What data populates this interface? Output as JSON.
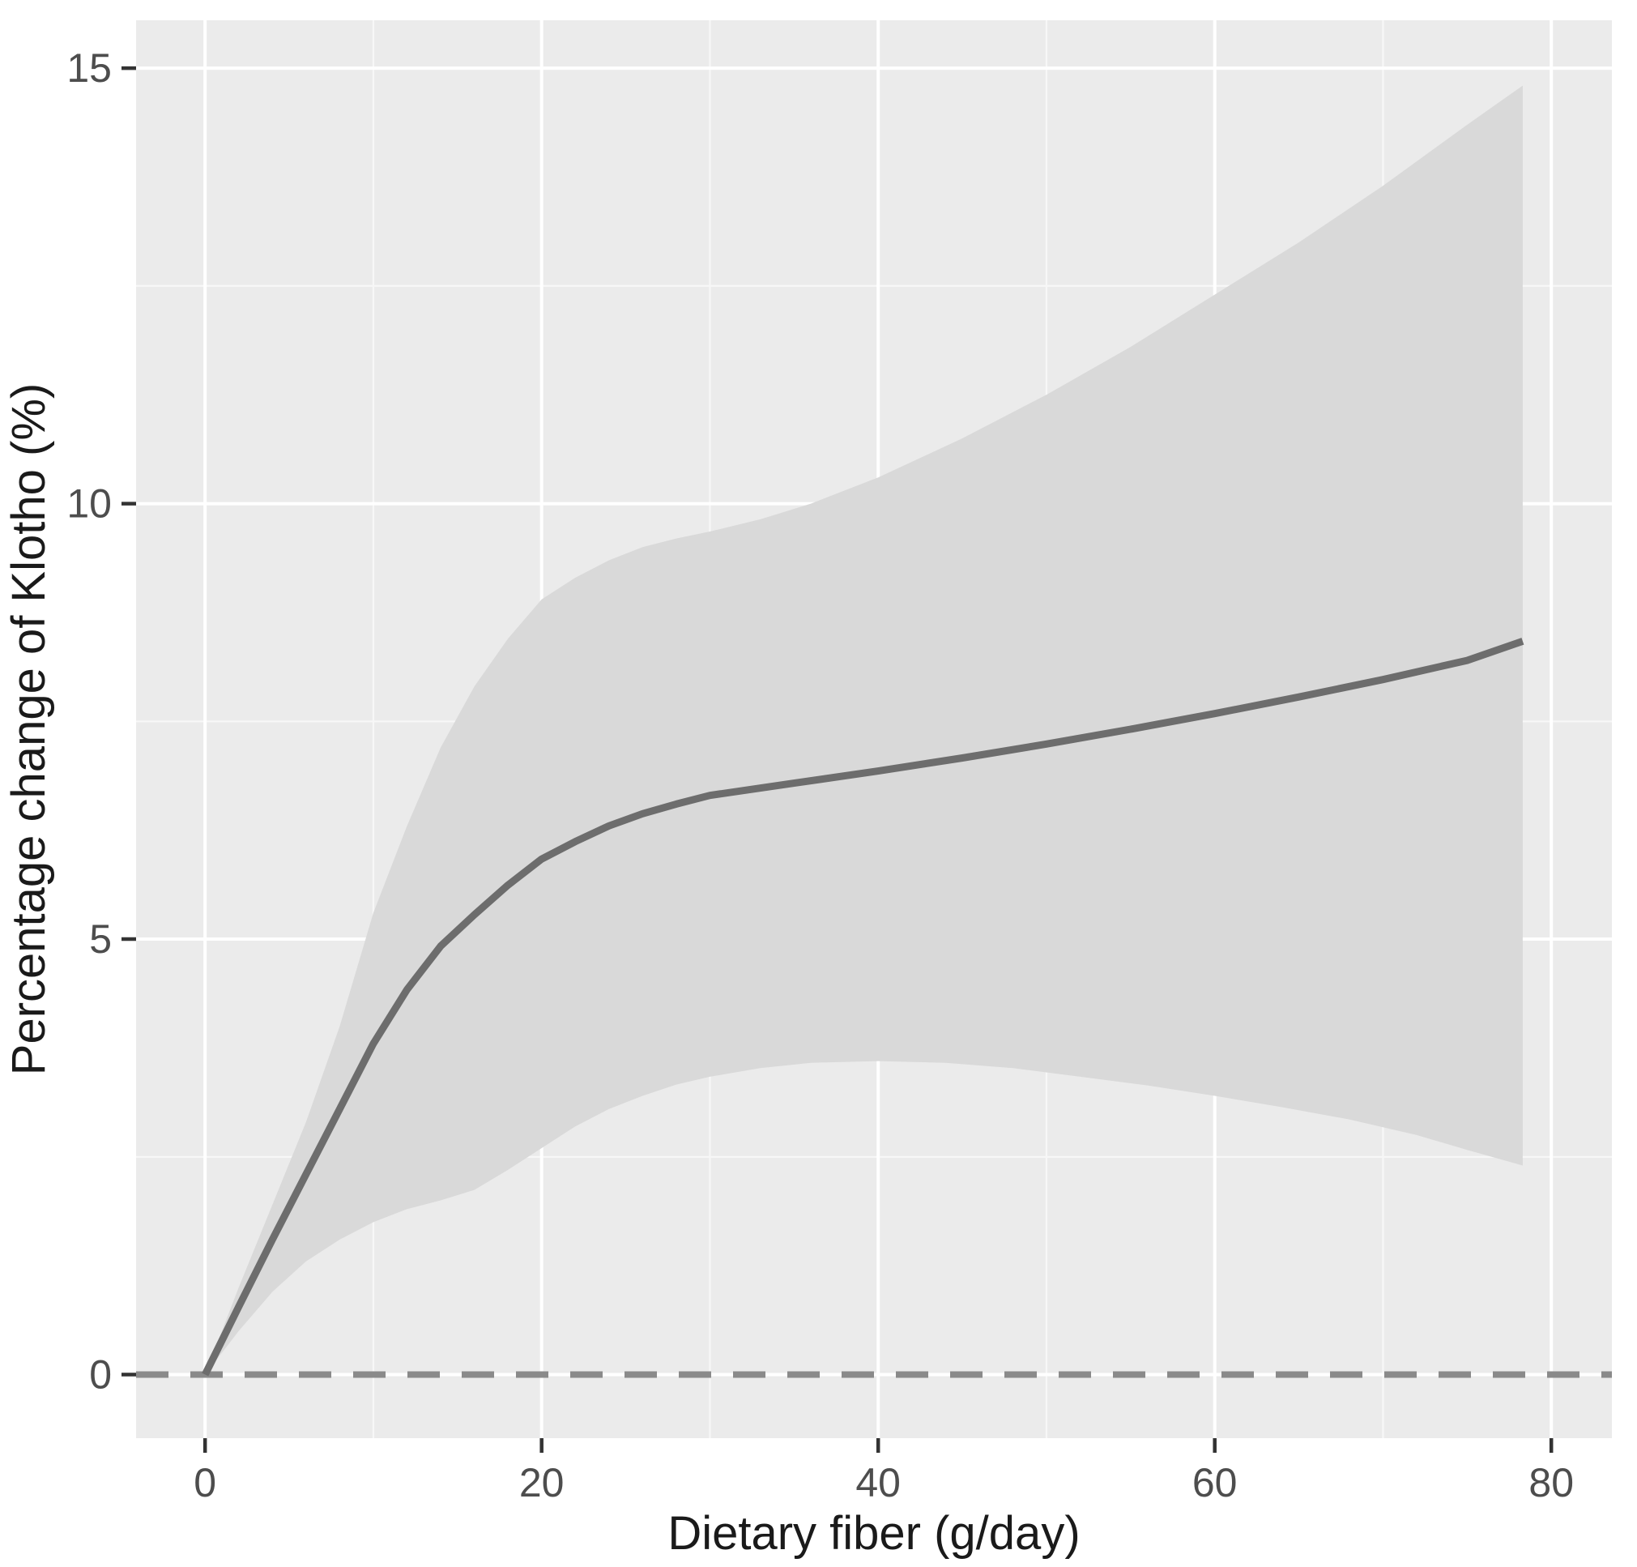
{
  "figure": {
    "kind": "ggplot-style dose-response plot",
    "background": "#ffffff"
  },
  "chart_data": {
    "type": "line",
    "title": "",
    "x": {
      "label": "Dietary fiber (g/day)",
      "ticks": [
        0,
        20,
        40,
        60,
        80
      ],
      "minor_ticks": [
        10,
        30,
        50,
        70
      ],
      "range": [
        -4.1,
        83.6
      ]
    },
    "y": {
      "label": "Percentage change of Klotho (%)",
      "ticks": [
        0,
        5,
        10,
        15
      ],
      "minor_ticks": [
        2.5,
        7.5,
        12.5
      ],
      "range": [
        -0.73,
        15.55
      ]
    },
    "reference_line": {
      "y": 0,
      "style": "dashed"
    },
    "series": [
      {
        "name": "95% confidence band",
        "type": "band",
        "upper": [
          [
            0,
            0
          ],
          [
            2,
            1.0
          ],
          [
            4,
            1.95
          ],
          [
            6,
            2.9
          ],
          [
            8,
            4.0
          ],
          [
            10,
            5.3
          ],
          [
            12,
            6.3
          ],
          [
            14,
            7.2
          ],
          [
            16,
            7.9
          ],
          [
            18,
            8.45
          ],
          [
            20,
            8.9
          ],
          [
            22,
            9.15
          ],
          [
            24,
            9.35
          ],
          [
            26,
            9.5
          ],
          [
            28,
            9.6
          ],
          [
            30,
            9.68
          ],
          [
            33,
            9.82
          ],
          [
            36,
            10.0
          ],
          [
            40,
            10.3
          ],
          [
            45,
            10.75
          ],
          [
            50,
            11.25
          ],
          [
            55,
            11.8
          ],
          [
            60,
            12.4
          ],
          [
            65,
            13.0
          ],
          [
            70,
            13.65
          ],
          [
            75,
            14.35
          ],
          [
            78.3,
            14.8
          ]
        ],
        "lower": [
          [
            0,
            0
          ],
          [
            2,
            0.5
          ],
          [
            4,
            0.95
          ],
          [
            6,
            1.3
          ],
          [
            8,
            1.55
          ],
          [
            10,
            1.75
          ],
          [
            12,
            1.9
          ],
          [
            14,
            2.0
          ],
          [
            16,
            2.12
          ],
          [
            18,
            2.35
          ],
          [
            20,
            2.6
          ],
          [
            22,
            2.85
          ],
          [
            24,
            3.05
          ],
          [
            26,
            3.2
          ],
          [
            28,
            3.33
          ],
          [
            30,
            3.42
          ],
          [
            33,
            3.52
          ],
          [
            36,
            3.58
          ],
          [
            40,
            3.6
          ],
          [
            44,
            3.58
          ],
          [
            48,
            3.52
          ],
          [
            52,
            3.42
          ],
          [
            56,
            3.32
          ],
          [
            60,
            3.2
          ],
          [
            64,
            3.07
          ],
          [
            68,
            2.93
          ],
          [
            72,
            2.75
          ],
          [
            75,
            2.58
          ],
          [
            78.3,
            2.4
          ]
        ]
      },
      {
        "name": "fitted dose-response curve",
        "type": "line",
        "points": [
          [
            0,
            0
          ],
          [
            2,
            0.78
          ],
          [
            4,
            1.55
          ],
          [
            6,
            2.3
          ],
          [
            8,
            3.05
          ],
          [
            10,
            3.8
          ],
          [
            12,
            4.42
          ],
          [
            14,
            4.92
          ],
          [
            16,
            5.28
          ],
          [
            18,
            5.62
          ],
          [
            20,
            5.92
          ],
          [
            22,
            6.12
          ],
          [
            24,
            6.3
          ],
          [
            26,
            6.44
          ],
          [
            28,
            6.55
          ],
          [
            30,
            6.65
          ],
          [
            35,
            6.79
          ],
          [
            40,
            6.93
          ],
          [
            45,
            7.08
          ],
          [
            50,
            7.24
          ],
          [
            55,
            7.41
          ],
          [
            60,
            7.59
          ],
          [
            65,
            7.78
          ],
          [
            70,
            7.98
          ],
          [
            75,
            8.2
          ],
          [
            78.3,
            8.42
          ]
        ]
      }
    ],
    "legend": "none",
    "grid": "on",
    "colors": {
      "panel_background": "#ebebeb",
      "grid_major": "#ffffff",
      "grid_minor": "#f7f7f7",
      "band_fill": "#d9d9d9",
      "line": "#6d6d6d",
      "reference_line": "#8a8a8a",
      "tick_mark": "#333333",
      "tick_label": "#4d4d4d",
      "axis_title": "#1a1a1a"
    }
  }
}
